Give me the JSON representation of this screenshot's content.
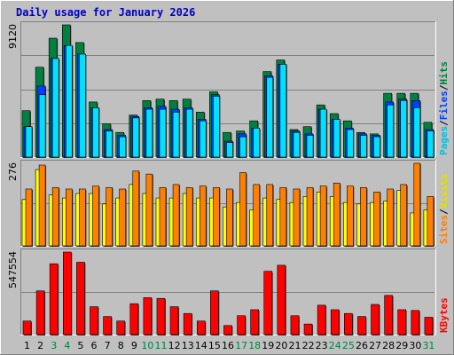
{
  "chart_data": {
    "type": "bar",
    "title": "Daily usage for January 2026",
    "categories": [
      "1",
      "2",
      "3",
      "4",
      "5",
      "6",
      "7",
      "8",
      "9",
      "10",
      "11",
      "12",
      "13",
      "14",
      "15",
      "16",
      "17",
      "18",
      "19",
      "20",
      "21",
      "22",
      "23",
      "24",
      "25",
      "26",
      "27",
      "28",
      "29",
      "30",
      "31"
    ],
    "weekend_days": [
      3,
      4,
      10,
      11,
      17,
      18,
      24,
      25,
      31
    ],
    "colors": {
      "hits": "#008040",
      "files": "#0040ff",
      "pages": "#00e0ff",
      "visits": "#ffff00",
      "sites": "#ff8000",
      "kbytes": "#ff0000",
      "title": "#0000c0",
      "weekend_label": "#008040"
    },
    "panels": [
      {
        "id": "hits_files_pages",
        "ymax_label": "9120",
        "ylim": [
          0,
          9120
        ],
        "right_labels": [
          {
            "text": "Pages",
            "color": "#00c0e0"
          },
          {
            "text": "/",
            "color": "#000000"
          },
          {
            "text": "Files",
            "color": "#0040ff"
          },
          {
            "text": "/",
            "color": "#000000"
          },
          {
            "text": "Hits",
            "color": "#008040"
          }
        ],
        "series": [
          {
            "name": "Hits",
            "values": [
              3200,
              6200,
              8200,
              9120,
              7900,
              3800,
              2300,
              1700,
              2900,
              3900,
              4000,
              3900,
              4000,
              3100,
              4500,
              1700,
              1800,
              2500,
              5900,
              6700,
              1900,
              2100,
              3600,
              3000,
              2500,
              1700,
              1600,
              4400,
              4400,
              4400,
              2400
            ]
          },
          {
            "name": "Files",
            "values": [
              2100,
              4900,
              6800,
              7700,
              7100,
              3400,
              1900,
              1500,
              2800,
              3400,
              3500,
              3300,
              3400,
              2600,
              4300,
              1100,
              1600,
              2000,
              5600,
              6400,
              1800,
              1600,
              3300,
              2600,
              2000,
              1600,
              1500,
              3800,
              4000,
              3900,
              1900
            ]
          },
          {
            "name": "Pages",
            "values": [
              2100,
              4300,
              6800,
              7700,
              7100,
              3400,
              1800,
              1400,
              2700,
              3300,
              3300,
              3100,
              3300,
              2500,
              4200,
              1000,
              1400,
              2000,
              5500,
              6400,
              1700,
              1500,
              3300,
              2600,
              1900,
              1500,
              1400,
              3600,
              3900,
              3400,
              1800
            ]
          }
        ]
      },
      {
        "id": "visits_sites",
        "ymax_label": "276",
        "ylim": [
          0,
          276
        ],
        "right_labels": [
          {
            "text": "Sites",
            "color": "#ff8000"
          },
          {
            "text": "/",
            "color": "#000000"
          },
          {
            "text": "Visits",
            "color": "#e0e000"
          }
        ],
        "series": [
          {
            "name": "Visits",
            "values": [
              155,
              255,
              170,
              160,
              175,
              175,
              140,
              160,
              205,
              175,
              160,
              160,
              175,
              160,
              160,
              130,
              145,
              120,
              160,
              155,
              145,
              165,
              180,
              165,
              145,
              140,
              145,
              150,
              185,
              110,
              120
            ]
          },
          {
            "name": "Sites",
            "values": [
              190,
              270,
              195,
              190,
              190,
              200,
              195,
              190,
              250,
              240,
              195,
              205,
              195,
              200,
              195,
              190,
              245,
              205,
              205,
              195,
              190,
              195,
              200,
              210,
              200,
              195,
              180,
              190,
              205,
              276,
              165
            ]
          }
        ]
      },
      {
        "id": "kbytes",
        "ymax_label": "547554",
        "ylim": [
          0,
          547554
        ],
        "right_labels": [
          {
            "text": "KBytes",
            "color": "#ff0000"
          }
        ],
        "series": [
          {
            "name": "KBytes",
            "values": [
              90000,
              290000,
              470000,
              547554,
              480000,
              185000,
              120000,
              90000,
              205000,
              245000,
              240000,
              185000,
              140000,
              90000,
              290000,
              60000,
              125000,
              165000,
              420000,
              460000,
              125000,
              70000,
              195000,
              165000,
              140000,
              120000,
              200000,
              260000,
              165000,
              160000,
              115000
            ]
          }
        ]
      }
    ]
  }
}
